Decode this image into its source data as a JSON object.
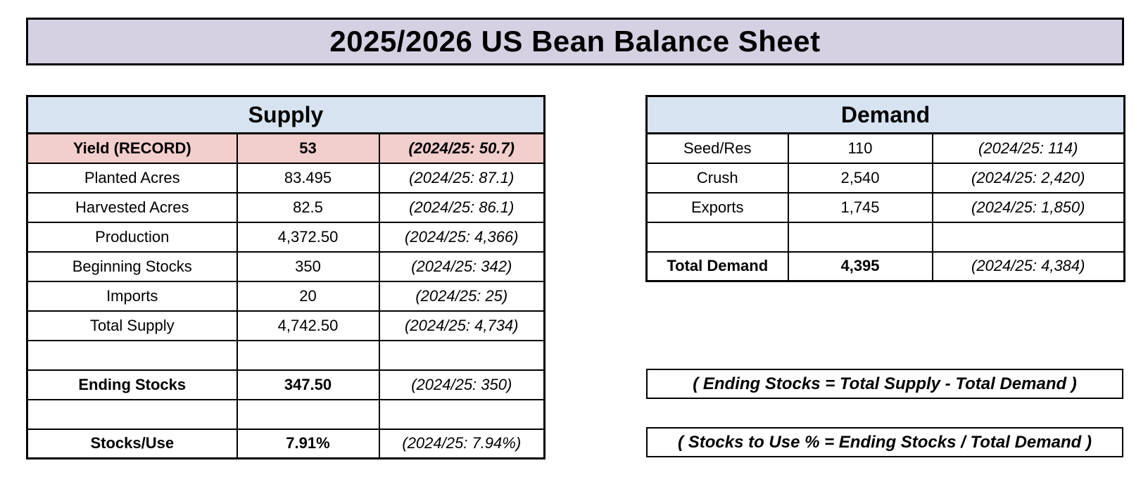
{
  "title": "2025/2026 US Bean Balance Sheet",
  "colors": {
    "title_bar_bg": "#d5d1e3",
    "section_header_bg": "#d7e3f0",
    "highlight_row_bg": "#f2cecd",
    "border": "#000000",
    "background": "#ffffff"
  },
  "supply_table": {
    "header": "Supply",
    "rows": [
      {
        "label": "Yield (RECORD)",
        "value": "53",
        "prior": "(2024/25: 50.7)",
        "style": "highlight"
      },
      {
        "label": "Planted Acres",
        "value": "83.495",
        "prior": "(2024/25: 87.1)",
        "style": "normal"
      },
      {
        "label": "Harvested Acres",
        "value": "82.5",
        "prior": "(2024/25: 86.1)",
        "style": "normal"
      },
      {
        "label": "Production",
        "value": "4,372.50",
        "prior": "(2024/25: 4,366)",
        "style": "normal"
      },
      {
        "label": "Beginning Stocks",
        "value": "350",
        "prior": "(2024/25: 342)",
        "style": "normal"
      },
      {
        "label": "Imports",
        "value": "20",
        "prior": "(2024/25: 25)",
        "style": "normal"
      },
      {
        "label": "Total Supply",
        "value": "4,742.50",
        "prior": "(2024/25: 4,734)",
        "style": "normal"
      },
      {
        "label": "",
        "value": "",
        "prior": "",
        "style": "blank"
      },
      {
        "label": "Ending Stocks",
        "value": "347.50",
        "prior": "(2024/25: 350)",
        "style": "emphasis"
      },
      {
        "label": "",
        "value": "",
        "prior": "",
        "style": "blank"
      },
      {
        "label": "Stocks/Use",
        "value": "7.91%",
        "prior": "(2024/25: 7.94%)",
        "style": "emphasis"
      }
    ]
  },
  "demand_table": {
    "header": "Demand",
    "rows": [
      {
        "label": "Seed/Res",
        "value": "110",
        "prior": "(2024/25: 114)",
        "style": "normal"
      },
      {
        "label": "Crush",
        "value": "2,540",
        "prior": "(2024/25: 2,420)",
        "style": "normal"
      },
      {
        "label": "Exports",
        "value": "1,745",
        "prior": "(2024/25: 1,850)",
        "style": "normal"
      },
      {
        "label": "",
        "value": "",
        "prior": "",
        "style": "blank"
      },
      {
        "label": "Total Demand",
        "value": "4,395",
        "prior": "(2024/25: 4,384)",
        "style": "emphasis"
      }
    ]
  },
  "notes": {
    "ending_stocks": "( Ending Stocks = Total Supply - Total Demand )",
    "stocks_to_use": "( Stocks to Use % = Ending Stocks / Total Demand )"
  }
}
